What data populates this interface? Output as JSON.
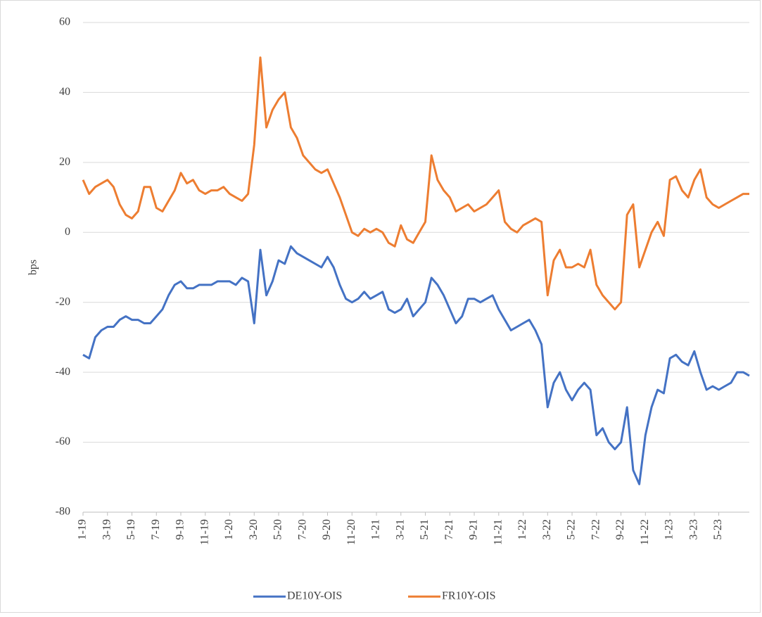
{
  "chart_data": {
    "type": "line",
    "y_label": "bps",
    "categories": [
      "1-19",
      null,
      null,
      null,
      "3-19",
      null,
      null,
      null,
      "5-19",
      null,
      null,
      null,
      "7-19",
      null,
      null,
      null,
      "9-19",
      null,
      null,
      null,
      "11-19",
      null,
      null,
      null,
      "1-20",
      null,
      null,
      null,
      "3-20",
      null,
      null,
      null,
      "5-20",
      null,
      null,
      null,
      "7-20",
      null,
      null,
      null,
      "9-20",
      null,
      null,
      null,
      "11-20",
      null,
      null,
      null,
      "1-21",
      null,
      null,
      null,
      "3-21",
      null,
      null,
      null,
      "5-21",
      null,
      null,
      null,
      "7-21",
      null,
      null,
      null,
      "9-21",
      null,
      null,
      null,
      "11-21",
      null,
      null,
      null,
      "1-22",
      null,
      null,
      null,
      "3-22",
      null,
      null,
      null,
      "5-22",
      null,
      null,
      null,
      "7-22",
      null,
      null,
      null,
      "9-22",
      null,
      null,
      null,
      "11-22",
      null,
      null,
      null,
      "1-23",
      null,
      null,
      null,
      "3-23",
      null,
      null,
      null,
      "5-23",
      null,
      null,
      null,
      null,
      null
    ],
    "series": [
      {
        "name": "DE10Y-OIS",
        "color": "#4472c4",
        "values": [
          -35,
          -36,
          -30,
          -28,
          -27,
          -27,
          -25,
          -24,
          -25,
          -25,
          -26,
          -26,
          -24,
          -22,
          -18,
          -15,
          -14,
          -16,
          -16,
          -15,
          -15,
          -15,
          -14,
          -14,
          -14,
          -15,
          -13,
          -14,
          -26,
          -5,
          -18,
          -14,
          -8,
          -9,
          -4,
          -6,
          -7,
          -8,
          -9,
          -10,
          -7,
          -10,
          -15,
          -19,
          -20,
          -19,
          -17,
          -19,
          -18,
          -17,
          -22,
          -23,
          -22,
          -19,
          -24,
          -22,
          -20,
          -13,
          -15,
          -18,
          -22,
          -26,
          -24,
          -19,
          -19,
          -20,
          -19,
          -18,
          -22,
          -25,
          -28,
          -27,
          -26,
          -25,
          -28,
          -32,
          -50,
          -43,
          -40,
          -45,
          -48,
          -45,
          -43,
          -45,
          -58,
          -56,
          -60,
          -62,
          -60,
          -50,
          -68,
          -72,
          -58,
          -50,
          -45,
          -46,
          -36,
          -35,
          -37,
          -38,
          -34,
          -40,
          -45,
          -44,
          -45,
          -44,
          -43,
          -40,
          -40,
          -41
        ]
      },
      {
        "name": "FR10Y-OIS",
        "color": "#ed7d31",
        "values": [
          15,
          11,
          13,
          14,
          15,
          13,
          8,
          5,
          4,
          6,
          13,
          13,
          7,
          6,
          9,
          12,
          17,
          14,
          15,
          12,
          11,
          12,
          12,
          13,
          11,
          10,
          9,
          11,
          25,
          50,
          30,
          35,
          38,
          40,
          30,
          27,
          22,
          20,
          18,
          17,
          18,
          14,
          10,
          5,
          0,
          -1,
          1,
          0,
          1,
          0,
          -3,
          -4,
          2,
          -2,
          -3,
          0,
          3,
          22,
          15,
          12,
          10,
          6,
          7,
          8,
          6,
          7,
          8,
          10,
          12,
          3,
          1,
          0,
          2,
          3,
          4,
          3,
          -18,
          -8,
          -5,
          -10,
          -10,
          -9,
          -10,
          -5,
          -15,
          -18,
          -20,
          -22,
          -20,
          5,
          8,
          -10,
          -5,
          0,
          3,
          -1,
          15,
          16,
          12,
          10,
          15,
          18,
          10,
          8,
          7,
          8,
          9,
          10,
          11,
          11
        ]
      }
    ],
    "ylim": [
      -80,
      60
    ],
    "yticks": [
      -80,
      -60,
      -40,
      -20,
      0,
      20,
      40,
      60
    ],
    "grid": true,
    "legend": "bottom"
  }
}
